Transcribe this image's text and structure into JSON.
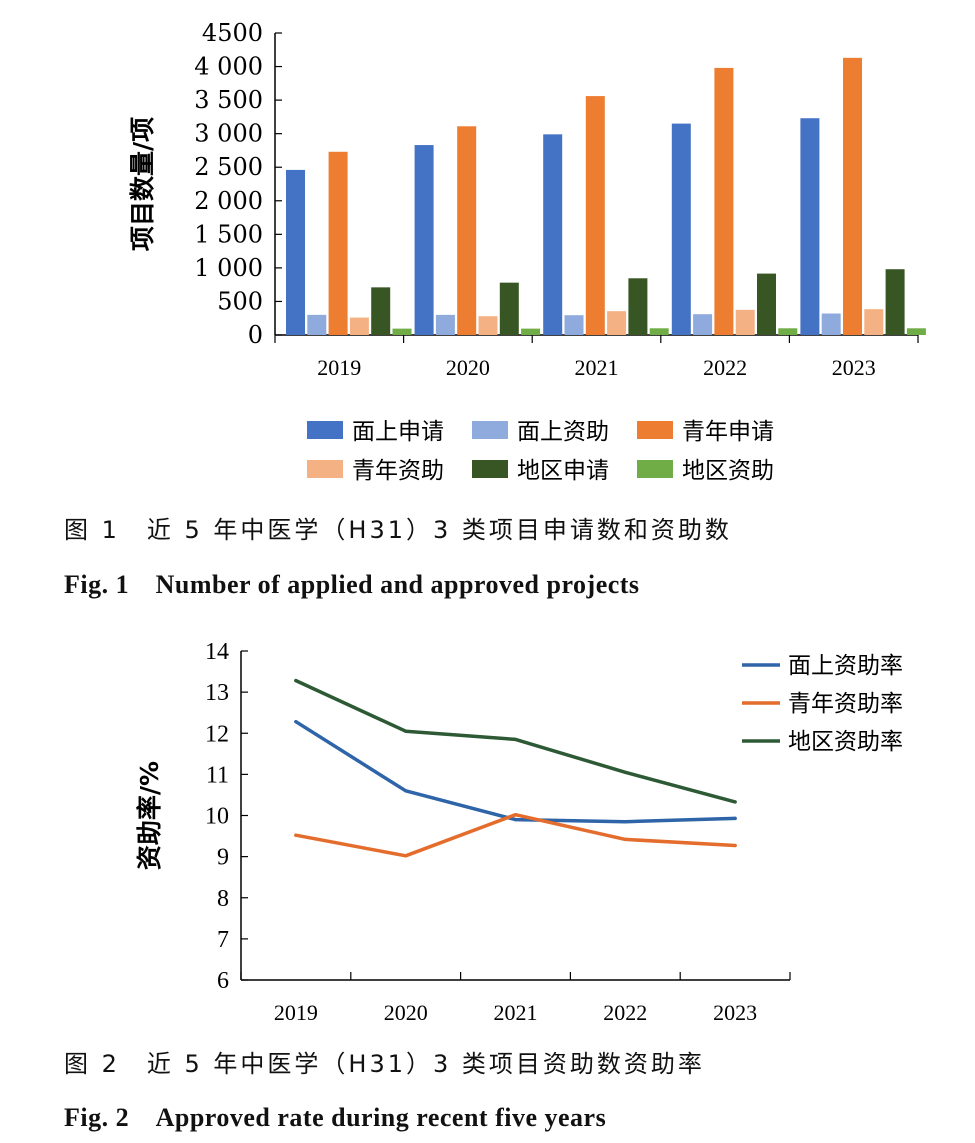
{
  "chart_data": [
    {
      "type": "bar",
      "categories": [
        "2019",
        "2020",
        "2021",
        "2022",
        "2023"
      ],
      "ylabel": "项目数量/项",
      "ylim": [
        0,
        4500
      ],
      "yticks": [
        0,
        500,
        1000,
        1500,
        2000,
        2500,
        3000,
        3500,
        4000,
        4500
      ],
      "yticklabels": [
        "0",
        "500",
        "1 000",
        "1 500",
        "2 000",
        "2 500",
        "3 000",
        "3 500",
        "4 000",
        "4500"
      ],
      "grid": false,
      "legend_position": "bottom",
      "series": [
        {
          "name": "面上申请",
          "color": "#4472C4",
          "values": [
            2460,
            2830,
            2990,
            3150,
            3230
          ]
        },
        {
          "name": "面上资助",
          "color": "#8FAADC",
          "values": [
            300,
            300,
            295,
            310,
            320
          ]
        },
        {
          "name": "青年申请",
          "color": "#ED7D31",
          "values": [
            2730,
            3110,
            3560,
            3980,
            4130
          ]
        },
        {
          "name": "青年资助",
          "color": "#F4B183",
          "values": [
            260,
            280,
            355,
            375,
            385
          ]
        },
        {
          "name": "地区申请",
          "color": "#375623",
          "values": [
            710,
            780,
            845,
            915,
            980
          ]
        },
        {
          "name": "地区资助",
          "color": "#70AD47",
          "values": [
            95,
            95,
            100,
            100,
            100
          ]
        }
      ]
    },
    {
      "type": "line",
      "categories": [
        "2019",
        "2020",
        "2021",
        "2022",
        "2023"
      ],
      "ylabel": "资助率/%",
      "ylim": [
        6,
        14
      ],
      "yticks": [
        6,
        7,
        8,
        9,
        10,
        11,
        12,
        13,
        14
      ],
      "grid": false,
      "legend_position": "top-right",
      "series": [
        {
          "name": "面上资助率",
          "color": "#2E64A8",
          "values": [
            12.28,
            10.6,
            9.9,
            9.85,
            9.93
          ]
        },
        {
          "name": "青年资助率",
          "color": "#E46C2C",
          "values": [
            9.52,
            9.02,
            10.02,
            9.42,
            9.27
          ]
        },
        {
          "name": "地区资助率",
          "color": "#2D5A35",
          "values": [
            13.28,
            12.05,
            11.85,
            11.05,
            10.33
          ]
        }
      ]
    }
  ],
  "captions": {
    "fig1_cn": "图 1　近 5 年中医学（H31）3 类项目申请数和资助数",
    "fig1_en": "Fig. 1　Number of applied and approved projects",
    "fig2_cn": "图 2　近 5 年中医学（H31）3 类项目资助数资助率",
    "fig2_en": "Fig. 2　Approved rate during recent five years"
  }
}
